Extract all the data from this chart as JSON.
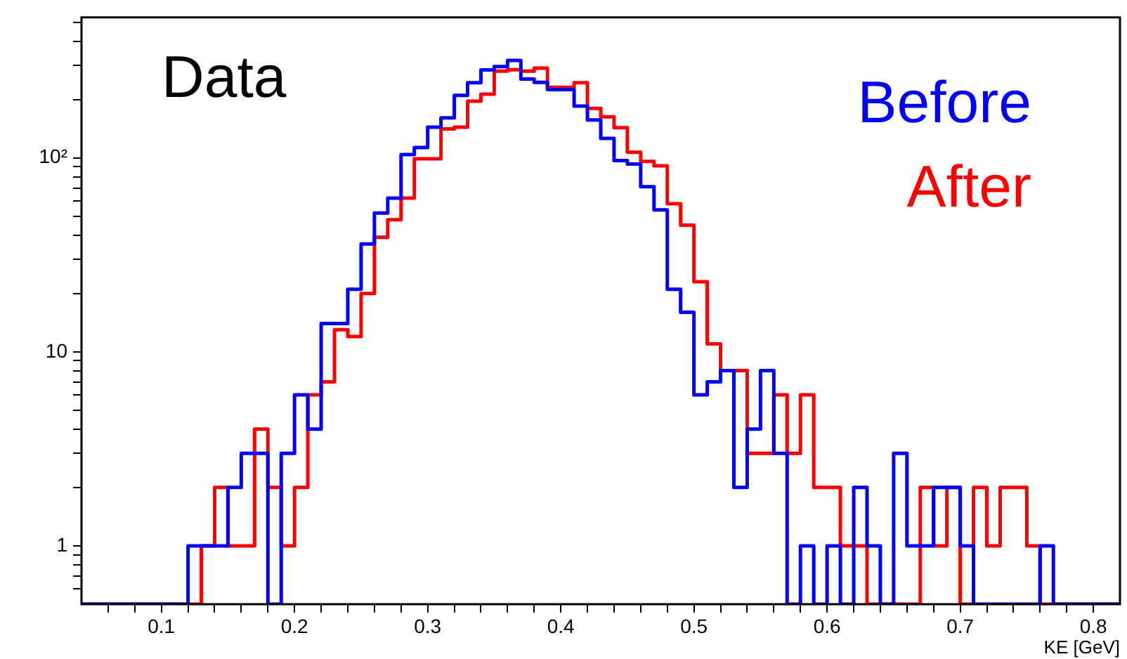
{
  "chart_data": {
    "type": "histogram",
    "bins": [
      0.04,
      0.05,
      0.06,
      0.07,
      0.08,
      0.09,
      0.1,
      0.11,
      0.12,
      0.13,
      0.14,
      0.15,
      0.16,
      0.17,
      0.18,
      0.19,
      0.2,
      0.21,
      0.22,
      0.23,
      0.24,
      0.25,
      0.26,
      0.27,
      0.28,
      0.29,
      0.3,
      0.31,
      0.32,
      0.33,
      0.34,
      0.35,
      0.36,
      0.37,
      0.38,
      0.39,
      0.4,
      0.41,
      0.42,
      0.43,
      0.44,
      0.45,
      0.46,
      0.47,
      0.48,
      0.49,
      0.5,
      0.51,
      0.52,
      0.53,
      0.54,
      0.55,
      0.56,
      0.57,
      0.58,
      0.59,
      0.6,
      0.61,
      0.62,
      0.63,
      0.64,
      0.65,
      0.66,
      0.67,
      0.68,
      0.69,
      0.7,
      0.71,
      0.72,
      0.73,
      0.74,
      0.75,
      0.76,
      0.77,
      0.78,
      0.79,
      0.8,
      0.81,
      0.82
    ],
    "series": [
      {
        "name": "Before",
        "color": "#0000ff",
        "values": [
          null,
          null,
          null,
          null,
          null,
          null,
          null,
          null,
          1,
          1,
          1,
          2,
          3,
          3,
          null,
          3,
          6,
          4,
          14,
          14,
          21,
          36,
          52,
          62,
          104,
          113,
          144,
          161,
          210,
          244,
          284,
          296,
          318,
          255,
          245,
          225,
          225,
          185,
          157,
          126,
          97,
          93,
          71,
          54,
          21,
          16,
          6,
          7,
          8,
          2,
          4,
          8,
          3,
          null,
          1,
          null,
          1,
          null,
          2,
          1,
          null,
          3,
          1,
          1,
          2,
          2,
          1,
          null,
          null,
          null,
          null,
          null,
          1,
          null,
          null,
          null,
          null,
          null
        ]
      },
      {
        "name": "After",
        "color": "#ff0000",
        "values": [
          null,
          null,
          null,
          null,
          null,
          null,
          null,
          null,
          null,
          1,
          2,
          1,
          1,
          4,
          2,
          1,
          2,
          6,
          7,
          13,
          12,
          20,
          39,
          48,
          62,
          99,
          99,
          141,
          144,
          196,
          213,
          280,
          285,
          280,
          290,
          231,
          231,
          244,
          180,
          163,
          143,
          107,
          96,
          91,
          58,
          45,
          23,
          11,
          8,
          8,
          3,
          3,
          6,
          3,
          6,
          2,
          2,
          1,
          1,
          null,
          null,
          null,
          null,
          2,
          1,
          2,
          null,
          2,
          1,
          2,
          2,
          1,
          null,
          null,
          null,
          null,
          null,
          null
        ]
      }
    ],
    "xlabel": "KE [GeV]",
    "annotations": [
      "Data"
    ],
    "legend": "top right",
    "log": "y",
    "grid": false,
    "xlim": [
      0.04,
      0.82
    ],
    "xticks": [
      {
        "value": 0.06,
        "label": null
      },
      {
        "value": 0.08,
        "label": null
      },
      0.1,
      {
        "value": 0.12,
        "label": null
      },
      {
        "value": 0.14,
        "label": null
      },
      {
        "value": 0.16,
        "label": null
      },
      {
        "value": 0.18,
        "label": null
      },
      0.2,
      {
        "value": 0.22,
        "label": null
      },
      {
        "value": 0.24,
        "label": null
      },
      {
        "value": 0.26,
        "label": null
      },
      {
        "value": 0.28,
        "label": null
      },
      0.3,
      {
        "value": 0.32,
        "label": null
      },
      {
        "value": 0.34,
        "label": null
      },
      {
        "value": 0.36,
        "label": null
      },
      {
        "value": 0.38,
        "label": null
      },
      0.4,
      {
        "value": 0.42,
        "label": null
      },
      {
        "value": 0.44,
        "label": null
      },
      {
        "value": 0.46,
        "label": null
      },
      {
        "value": 0.48,
        "label": null
      },
      0.5,
      {
        "value": 0.52,
        "label": null
      },
      {
        "value": 0.54,
        "label": null
      },
      {
        "value": 0.56,
        "label": null
      },
      {
        "value": 0.58,
        "label": null
      },
      0.6,
      {
        "value": 0.62,
        "label": null
      },
      {
        "value": 0.64,
        "label": null
      },
      {
        "value": 0.66,
        "label": null
      },
      {
        "value": 0.68,
        "label": null
      },
      0.7,
      {
        "value": 0.72,
        "label": null
      },
      {
        "value": 0.74,
        "label": null
      },
      {
        "value": 0.76,
        "label": null
      },
      {
        "value": 0.78,
        "label": null
      },
      0.8
    ],
    "ylim": [
      0.5,
      530
    ],
    "yticks": [
      {
        "value": 0.6,
        "label": null
      },
      {
        "value": 0.7,
        "label": null
      },
      {
        "value": 0.8,
        "label": null
      },
      {
        "value": 0.9,
        "label": null
      },
      1,
      {
        "value": 2,
        "label": null
      },
      {
        "value": 3,
        "label": null
      },
      {
        "value": 4,
        "label": null
      },
      {
        "value": 5,
        "label": null
      },
      {
        "value": 6,
        "label": null
      },
      {
        "value": 7,
        "label": null
      },
      {
        "value": 8,
        "label": null
      },
      {
        "value": 9,
        "label": null
      },
      10,
      {
        "value": 20,
        "label": null
      },
      {
        "value": 30,
        "label": null
      },
      {
        "value": 40,
        "label": null
      },
      {
        "value": 50,
        "label": null
      },
      {
        "value": 60,
        "label": null
      },
      {
        "value": 70,
        "label": null
      },
      {
        "value": 80,
        "label": null
      },
      {
        "value": 90,
        "label": null
      },
      {
        "value": 100,
        "label": "10²"
      },
      {
        "value": 200,
        "label": null
      },
      {
        "value": 300,
        "label": null
      },
      {
        "value": 400,
        "label": null
      },
      {
        "value": 500,
        "label": null
      }
    ]
  }
}
